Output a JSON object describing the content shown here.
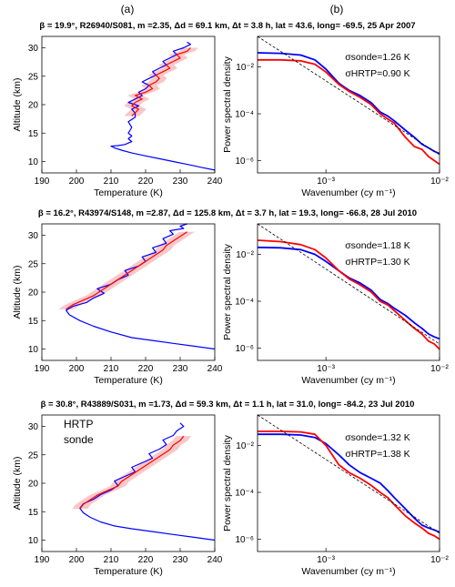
{
  "panel_labels": [
    "(a)",
    "(b)"
  ],
  "rows": [
    {
      "title": "β = 19.9°, R26940/S081, m =2.35, Δd = 69.1 km, Δt = 3.8 h, lat = 43.6, long= -69.5, 25 Apr 2007",
      "legend": [],
      "annot_sonde": "σsonde=1.26 K",
      "annot_hrtp": "σHRTP=0.90 K"
    },
    {
      "title": "β = 16.2°, R43974/S148, m =2.87, Δd = 125.8 km, Δt = 3.7 h, lat = 19.3, long= -66.8, 28 Jul 2010",
      "legend": [],
      "annot_sonde": "σsonde=1.18 K",
      "annot_hrtp": "σHRTP=1.30 K"
    },
    {
      "title": "β = 30.8°, R43889/S031, m =1.73, Δd = 59.3 km, Δt = 1.1 h, lat = 31.0, long= -84.2, 23 Jul 2010",
      "legend": [
        {
          "label": "HRTP",
          "color": "#ff0000"
        },
        {
          "label": "sonde",
          "color": "#0000ff"
        }
      ],
      "annot_sonde": "σsonde=1.32 K",
      "annot_hrtp": "σHRTP=1.38 K"
    }
  ],
  "chart_data": [
    {
      "type": "line",
      "panel": "(a) row 1",
      "xlabel": "Temperature (K)",
      "ylabel": "Altitude (km)",
      "xlim": [
        190,
        240
      ],
      "ylim": [
        8,
        32
      ],
      "xticks": [
        190,
        200,
        210,
        220,
        230,
        240
      ],
      "yticks": [
        10,
        15,
        20,
        25,
        30
      ],
      "series": [
        {
          "name": "sonde",
          "color": "#0000ff",
          "x": [
            240,
            236,
            232,
            228,
            224,
            220,
            216,
            213,
            211,
            210,
            212,
            214,
            216,
            215,
            216,
            215,
            216,
            215,
            217,
            217,
            216,
            218,
            215,
            217,
            219,
            218,
            220,
            221,
            219,
            221,
            223,
            222,
            224,
            226,
            225,
            227,
            229,
            228,
            231,
            233,
            232
          ],
          "y": [
            8.5,
            9.0,
            9.5,
            10.0,
            10.5,
            11.0,
            11.5,
            12.0,
            12.4,
            12.7,
            12.8,
            13.0,
            13.5,
            14.0,
            14.5,
            15.0,
            16.0,
            17.0,
            17.8,
            18.5,
            19.2,
            19.8,
            20.4,
            21.0,
            21.6,
            22.2,
            22.8,
            23.4,
            24.0,
            24.6,
            25.2,
            25.8,
            26.4,
            27.0,
            27.6,
            28.2,
            28.8,
            29.4,
            30.0,
            30.6,
            31.0
          ]
        },
        {
          "name": "HRTP",
          "color": "#ff0000",
          "x": [
            216,
            217,
            218,
            216,
            217,
            219,
            217,
            220,
            222,
            221,
            223,
            224,
            223,
            225,
            227,
            226,
            228,
            230,
            229,
            232,
            233
          ],
          "y": [
            18.0,
            18.6,
            19.2,
            19.8,
            20.4,
            21.0,
            21.6,
            22.2,
            22.8,
            23.4,
            24.0,
            24.6,
            25.2,
            25.8,
            26.4,
            27.0,
            27.6,
            28.2,
            28.8,
            29.4,
            30.0
          ]
        }
      ]
    },
    {
      "type": "line",
      "panel": "(b) row 1",
      "xlabel": "Wavenumber (cy m⁻¹)",
      "ylabel": "Power spectral density",
      "xscale": "log",
      "yscale": "log",
      "xlim": [
        0.00025,
        0.01
      ],
      "ylim": [
        3e-07,
        0.2
      ],
      "xticks": [
        0.001,
        0.01
      ],
      "xticklabels": [
        "10⁻³",
        "10⁻²"
      ],
      "yticks": [
        1e-06,
        0.0001,
        0.01
      ],
      "yticklabels": [
        "10⁻⁶",
        "10⁻⁴",
        "10⁻²"
      ],
      "series": [
        {
          "name": "sonde",
          "color": "#0000ff",
          "x": [
            0.00025,
            0.0004,
            0.0006,
            0.0008,
            0.001,
            0.0013,
            0.0016,
            0.002,
            0.0025,
            0.003,
            0.0035,
            0.004,
            0.005,
            0.006,
            0.007,
            0.008,
            0.009,
            0.01
          ],
          "y": [
            0.04,
            0.038,
            0.032,
            0.02,
            0.008,
            0.002,
            0.001,
            0.0006,
            0.0003,
            0.00012,
            8e-05,
            5e-05,
            2e-05,
            1e-05,
            5e-06,
            3.5e-06,
            2.5e-06,
            2e-06
          ]
        },
        {
          "name": "HRTP",
          "color": "#ff0000",
          "x": [
            0.00025,
            0.0004,
            0.0006,
            0.0008,
            0.001,
            0.0013,
            0.0016,
            0.002,
            0.0025,
            0.003,
            0.0035,
            0.004,
            0.005,
            0.006,
            0.007,
            0.008,
            0.009,
            0.01
          ],
          "y": [
            0.02,
            0.02,
            0.018,
            0.013,
            0.006,
            0.0018,
            0.0009,
            0.0005,
            0.00025,
            0.0001,
            6e-05,
            4e-05,
            1e-05,
            4e-06,
            3e-06,
            1.5e-06,
            1e-06,
            7e-07
          ]
        },
        {
          "name": "",
          "style": "dashed",
          "color": "#000000",
          "x": [
            0.00025,
            0.01
          ],
          "y": [
            0.25,
            1.8e-06
          ]
        }
      ]
    },
    {
      "type": "line",
      "panel": "(a) row 2",
      "xlabel": "Temperature (K)",
      "ylabel": "Altitude (km)",
      "xlim": [
        190,
        240
      ],
      "ylim": [
        8,
        32
      ],
      "xticks": [
        190,
        200,
        210,
        220,
        230,
        240
      ],
      "yticks": [
        10,
        15,
        20,
        25,
        30
      ],
      "series": [
        {
          "name": "sonde",
          "color": "#0000ff",
          "x": [
            240,
            234,
            228,
            222,
            216,
            210,
            205,
            201,
            198,
            197,
            199,
            203,
            205,
            208,
            206,
            210,
            212,
            215,
            214,
            218,
            220,
            219,
            223,
            222,
            226,
            225,
            228,
            227,
            231,
            230,
            232
          ],
          "y": [
            10.0,
            10.5,
            11.0,
            11.5,
            12.0,
            13.0,
            14.0,
            15.0,
            16.0,
            16.8,
            17.5,
            18.2,
            19.0,
            19.8,
            20.6,
            21.4,
            22.2,
            23.0,
            23.8,
            24.6,
            25.4,
            26.2,
            27.0,
            27.8,
            28.6,
            29.4,
            30.2,
            30.8,
            31.2,
            31.6,
            32.0
          ]
        },
        {
          "name": "HRTP",
          "color": "#ff0000",
          "x": [
            197,
            199,
            202,
            205,
            207,
            209,
            211,
            213,
            215,
            217,
            219,
            221,
            223,
            225,
            226,
            228,
            230,
            232
          ],
          "y": [
            17.0,
            17.8,
            18.6,
            19.4,
            20.2,
            21.0,
            21.8,
            22.6,
            23.4,
            24.2,
            25.0,
            25.8,
            26.6,
            27.4,
            28.2,
            29.0,
            29.8,
            30.6
          ]
        }
      ]
    },
    {
      "type": "line",
      "panel": "(b) row 2",
      "xlabel": "Wavenumber (cy m⁻¹)",
      "ylabel": "Power spectral density",
      "xscale": "log",
      "yscale": "log",
      "xlim": [
        0.00025,
        0.01
      ],
      "ylim": [
        3e-07,
        0.2
      ],
      "xticks": [
        0.001,
        0.01
      ],
      "xticklabels": [
        "10⁻³",
        "10⁻²"
      ],
      "yticks": [
        1e-06,
        0.0001,
        0.01
      ],
      "yticklabels": [
        "10⁻⁶",
        "10⁻⁴",
        "10⁻²"
      ],
      "series": [
        {
          "name": "sonde",
          "color": "#0000ff",
          "x": [
            0.00025,
            0.0004,
            0.0006,
            0.0008,
            0.001,
            0.0013,
            0.0016,
            0.002,
            0.0025,
            0.003,
            0.0035,
            0.004,
            0.005,
            0.006,
            0.007,
            0.008,
            0.009,
            0.01
          ],
          "y": [
            0.02,
            0.019,
            0.016,
            0.01,
            0.005,
            0.002,
            0.001,
            0.0006,
            0.0003,
            0.00012,
            8e-05,
            5e-05,
            2.5e-05,
            1.2e-05,
            7e-06,
            4e-06,
            3e-06,
            2.5e-06
          ]
        },
        {
          "name": "HRTP",
          "color": "#ff0000",
          "x": [
            0.00025,
            0.0004,
            0.0006,
            0.0008,
            0.001,
            0.0013,
            0.0016,
            0.002,
            0.0025,
            0.003,
            0.0035,
            0.004,
            0.005,
            0.006,
            0.007,
            0.008,
            0.009,
            0.01
          ],
          "y": [
            0.04,
            0.035,
            0.026,
            0.016,
            0.007,
            0.002,
            0.0009,
            0.0005,
            0.00025,
            0.0001,
            7e-05,
            4e-05,
            1.5e-05,
            7e-06,
            4e-06,
            2e-06,
            1.5e-06,
            9e-07
          ]
        },
        {
          "name": "",
          "style": "dashed",
          "color": "#000000",
          "x": [
            0.00025,
            0.01
          ],
          "y": [
            0.2,
            1.5e-06
          ]
        }
      ]
    },
    {
      "type": "line",
      "panel": "(a) row 3",
      "xlabel": "Temperature (K)",
      "ylabel": "Altitude (km)",
      "xlim": [
        190,
        240
      ],
      "ylim": [
        8,
        32
      ],
      "xticks": [
        190,
        200,
        210,
        220,
        230,
        240
      ],
      "yticks": [
        10,
        15,
        20,
        25,
        30
      ],
      "series": [
        {
          "name": "sonde",
          "color": "#0000ff",
          "x": [
            240,
            234,
            228,
            222,
            216,
            211,
            207,
            204,
            202,
            201,
            202,
            205,
            207,
            210,
            212,
            211,
            214,
            217,
            216,
            219,
            222,
            221,
            224,
            226,
            225,
            228,
            229,
            231,
            230
          ],
          "y": [
            10.0,
            10.5,
            11.0,
            11.5,
            12.0,
            12.5,
            13.2,
            14.0,
            14.8,
            15.6,
            16.4,
            17.2,
            18.0,
            18.8,
            19.6,
            20.4,
            21.2,
            22.0,
            22.8,
            23.6,
            24.4,
            25.2,
            26.0,
            26.8,
            27.6,
            28.4,
            29.2,
            30.0,
            30.6
          ]
        },
        {
          "name": "HRTP",
          "color": "#ff0000",
          "x": [
            201,
            202,
            204,
            206,
            209,
            212,
            213,
            215,
            217,
            219,
            221,
            223,
            225,
            227,
            228,
            230,
            231
          ],
          "y": [
            15.5,
            16.3,
            17.1,
            17.9,
            18.7,
            19.5,
            20.3,
            21.1,
            21.9,
            22.7,
            23.5,
            24.3,
            25.1,
            25.9,
            26.7,
            27.5,
            28.3
          ]
        }
      ]
    },
    {
      "type": "line",
      "panel": "(b) row 3",
      "xlabel": "Wavenumber (cy m⁻¹)",
      "ylabel": "Power spectral density",
      "xscale": "log",
      "yscale": "log",
      "xlim": [
        0.00025,
        0.01
      ],
      "ylim": [
        3e-07,
        0.2
      ],
      "xticks": [
        0.001,
        0.01
      ],
      "xticklabels": [
        "10⁻³",
        "10⁻²"
      ],
      "yticks": [
        1e-06,
        0.0001,
        0.01
      ],
      "yticklabels": [
        "10⁻⁶",
        "10⁻⁴",
        "10⁻²"
      ],
      "series": [
        {
          "name": "sonde",
          "color": "#0000ff",
          "x": [
            0.00025,
            0.0004,
            0.0006,
            0.0008,
            0.001,
            0.0013,
            0.0016,
            0.002,
            0.0025,
            0.003,
            0.0035,
            0.004,
            0.005,
            0.006,
            0.007,
            0.008,
            0.009,
            0.01
          ],
          "y": [
            0.03,
            0.03,
            0.028,
            0.022,
            0.012,
            0.004,
            0.0015,
            0.0007,
            0.0004,
            0.00025,
            0.00012,
            6e-05,
            2e-05,
            8e-06,
            4e-06,
            3e-06,
            2.5e-06,
            2e-06
          ]
        },
        {
          "name": "HRTP",
          "color": "#ff0000",
          "x": [
            0.00025,
            0.0004,
            0.0006,
            0.0008,
            0.001,
            0.0013,
            0.0016,
            0.002,
            0.0025,
            0.003,
            0.0035,
            0.004,
            0.005,
            0.006,
            0.007,
            0.008,
            0.009,
            0.01
          ],
          "y": [
            0.04,
            0.04,
            0.038,
            0.03,
            0.01,
            0.0015,
            0.0007,
            0.0004,
            0.0002,
            0.0001,
            6e-05,
            3e-05,
            1e-05,
            5e-06,
            3e-06,
            1.8e-06,
            1.4e-06,
            1e-06
          ]
        },
        {
          "name": "",
          "style": "dashed",
          "color": "#000000",
          "x": [
            0.00025,
            0.01
          ],
          "y": [
            0.3,
            1.8e-06
          ]
        }
      ]
    }
  ]
}
